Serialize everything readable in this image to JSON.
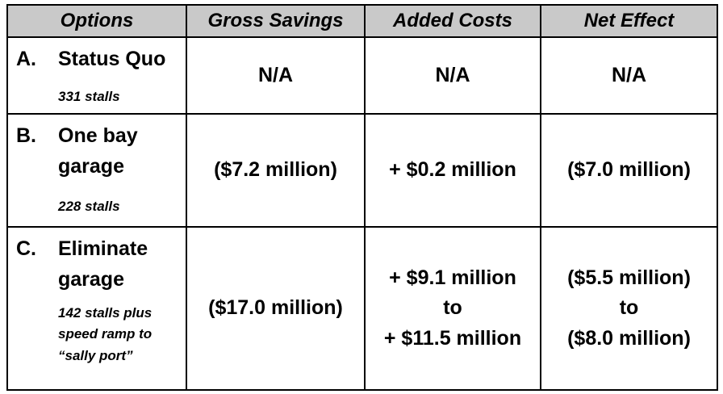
{
  "table": {
    "name": "parking-garage-options-cost-comparison",
    "colors": {
      "header_bg": "#c9c9c9",
      "border": "#000000",
      "text": "#000000",
      "page_bg": "#ffffff"
    },
    "headers": [
      "Options",
      "Gross Savings",
      "Added Costs",
      "Net Effect"
    ],
    "rows": [
      {
        "letter": "A.",
        "title": [
          "Status Quo"
        ],
        "note": [
          "331 stalls"
        ],
        "gross_savings": [
          "N/A"
        ],
        "added_costs": [
          "N/A"
        ],
        "net_effect": [
          "N/A"
        ]
      },
      {
        "letter": "B.",
        "title": [
          "One bay",
          "garage"
        ],
        "note": [
          "228 stalls"
        ],
        "gross_savings": [
          "($7.2 million)"
        ],
        "added_costs": [
          "+ $0.2 million"
        ],
        "net_effect": [
          "($7.0 million)"
        ]
      },
      {
        "letter": "C.",
        "title": [
          "Eliminate",
          "garage"
        ],
        "note": [
          "142 stalls plus",
          "speed ramp to",
          "“sally port”"
        ],
        "gross_savings": [
          "($17.0 million)"
        ],
        "added_costs": [
          "+ $9.1 million",
          "to",
          "+ $11.5 million"
        ],
        "net_effect": [
          "($5.5 million)",
          "to",
          "($8.0 million)"
        ]
      }
    ]
  }
}
